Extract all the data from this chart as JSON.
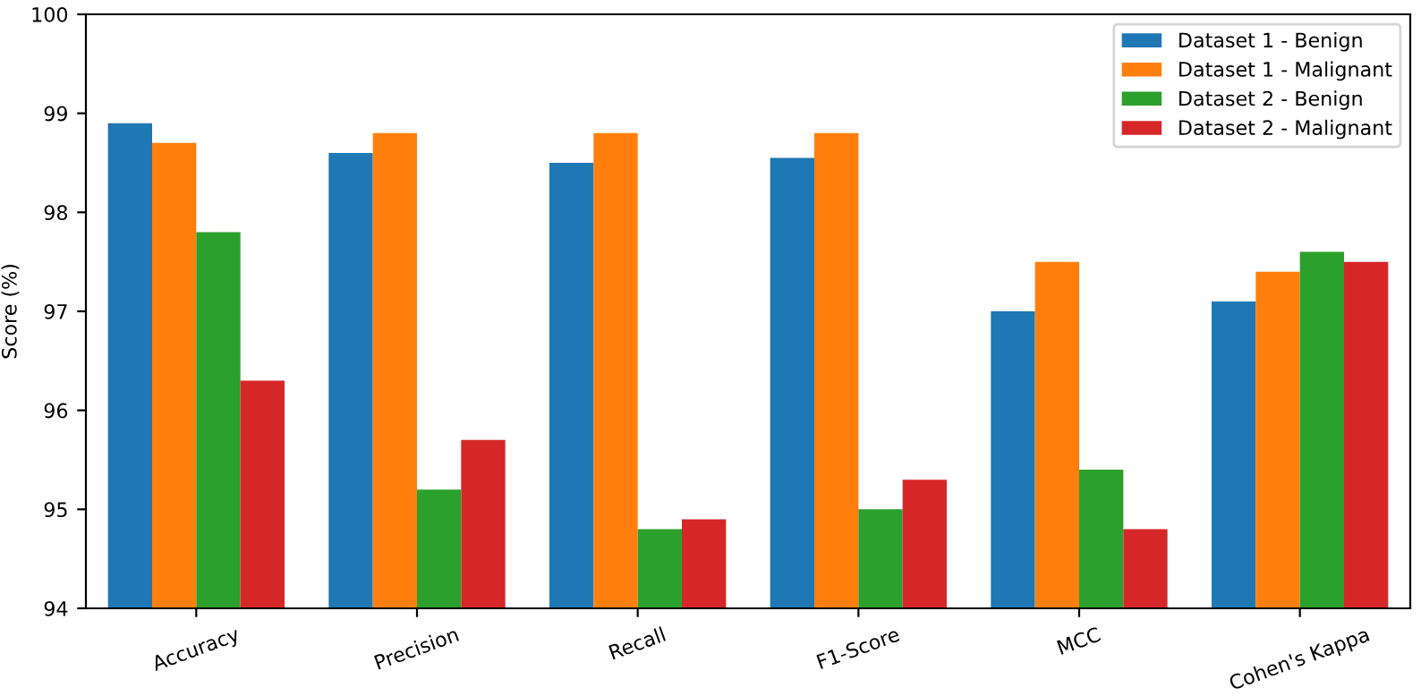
{
  "chart_data": {
    "type": "bar",
    "ylabel": "Score (%)",
    "categories": [
      "Accuracy",
      "Precision",
      "Recall",
      "F1-Score",
      "MCC",
      "Cohen's Kappa"
    ],
    "series": [
      {
        "name": "Dataset 1 - Benign",
        "color": "#1f77b4",
        "values": [
          98.9,
          98.6,
          98.5,
          98.55,
          97.0,
          97.1
        ]
      },
      {
        "name": "Dataset 1 - Malignant",
        "color": "#ff7f0e",
        "values": [
          98.7,
          98.8,
          98.8,
          98.8,
          97.5,
          97.4
        ]
      },
      {
        "name": "Dataset 2 - Benign",
        "color": "#2ca02c",
        "values": [
          97.8,
          95.2,
          94.8,
          95.0,
          95.4,
          97.6
        ]
      },
      {
        "name": "Dataset 2 - Malignant",
        "color": "#d62728",
        "values": [
          96.3,
          95.7,
          94.9,
          95.3,
          94.8,
          97.5
        ]
      }
    ],
    "ylim": [
      94,
      100
    ],
    "yticks": [
      94,
      95,
      96,
      97,
      98,
      99,
      100
    ],
    "grid": false,
    "legend": "top right"
  }
}
